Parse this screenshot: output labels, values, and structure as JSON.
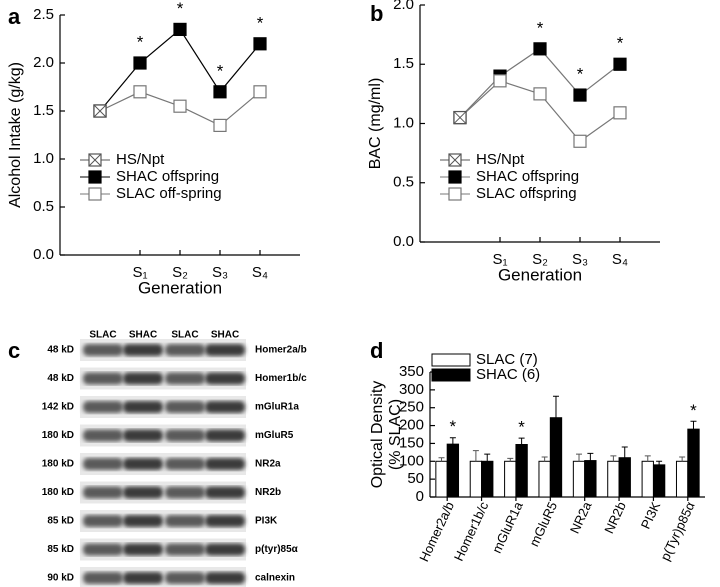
{
  "chart_data": [
    {
      "type": "line",
      "panel": "a",
      "ylabel": "Alcohol Intake (g/kg)",
      "xlabel": "Generation",
      "categories": [
        null,
        "S₁",
        "S₂",
        "S₃",
        "S₄"
      ],
      "ylim": [
        0,
        2.5
      ],
      "yticks": [
        {
          "value": 0,
          "label": "0.0"
        },
        {
          "value": 0.5,
          "label": "0.5"
        },
        {
          "value": 1,
          "label": "1.0"
        },
        {
          "value": 1.5,
          "label": "1.5"
        },
        {
          "value": 2,
          "label": "2.0"
        },
        {
          "value": 2.5,
          "label": "2.5"
        }
      ],
      "series": [
        {
          "name": "HS/Npt",
          "color": "#555555",
          "marker": "crossed-square",
          "values": [
            1.5,
            null,
            null,
            null,
            null
          ]
        },
        {
          "name": "SHAC offspring",
          "color": "#000000",
          "marker": "filled-square",
          "values": [
            1.5,
            2.0,
            2.35,
            1.7,
            2.2
          ]
        },
        {
          "name": "SLAC off-spring",
          "color": "#777777",
          "marker": "open-square",
          "values": [
            1.5,
            1.7,
            1.55,
            1.35,
            1.7
          ]
        }
      ],
      "annotations": [
        {
          "text": "*",
          "category": "S₁"
        },
        {
          "text": "*",
          "category": "S₂"
        },
        {
          "text": "*",
          "category": "S₃"
        },
        {
          "text": "*",
          "category": "S₄"
        }
      ]
    },
    {
      "type": "line",
      "panel": "b",
      "ylabel": "BAC (mg/ml)",
      "xlabel": "Generation",
      "categories": [
        null,
        "S₁",
        "S₂",
        "S₃",
        "S₄"
      ],
      "ylim": [
        0,
        2.0
      ],
      "yticks": [
        {
          "value": 0,
          "label": "0.0"
        },
        {
          "value": 0.5,
          "label": "0.5"
        },
        {
          "value": 1,
          "label": "1.0"
        },
        {
          "value": 1.5,
          "label": "1.5"
        },
        {
          "value": 2,
          "label": "2.0"
        }
      ],
      "series": [
        {
          "name": "HS/Npt",
          "color": "#555555",
          "marker": "crossed-square",
          "values": [
            1.05,
            null,
            null,
            null,
            null
          ]
        },
        {
          "name": "SHAC offspring",
          "color": "#777777",
          "marker": "filled-square",
          "values": [
            1.05,
            1.4,
            1.63,
            1.24,
            1.5
          ]
        },
        {
          "name": "SLAC offspring",
          "color": "#777777",
          "marker": "open-square",
          "values": [
            1.05,
            1.36,
            1.25,
            0.85,
            1.09
          ]
        }
      ],
      "annotations": [
        {
          "text": "*",
          "category": "S₂"
        },
        {
          "text": "*",
          "category": "S₃"
        },
        {
          "text": "*",
          "category": "S₄"
        }
      ]
    },
    {
      "type": "bar",
      "panel": "d",
      "ylabel": [
        "Optical Density",
        "(% SLAC)"
      ],
      "categories": [
        "Homer2a/b",
        "Homer1b/c",
        "mGluR1a",
        "mGluR5",
        "NR2a",
        "NR2b",
        "PI3K",
        "p(Tyr)p85α"
      ],
      "ylim": [
        0,
        350
      ],
      "yticks": [
        0,
        50,
        100,
        150,
        200,
        250,
        300,
        350
      ],
      "series": [
        {
          "name": "SLAC (7)",
          "color": "#ffffff",
          "values": [
            100,
            100,
            100,
            100,
            100,
            100,
            100,
            100
          ],
          "errors": [
            10,
            30,
            8,
            12,
            20,
            15,
            15,
            12
          ]
        },
        {
          "name": "SHAC (6)",
          "color": "#000000",
          "values": [
            148,
            100,
            147,
            222,
            102,
            110,
            90,
            190
          ],
          "errors": [
            18,
            20,
            18,
            60,
            20,
            30,
            10,
            22
          ]
        }
      ],
      "annotations": [
        {
          "text": "*",
          "category": "Homer2a/b"
        },
        {
          "text": "*",
          "category": "mGluR1a"
        },
        {
          "text": "*",
          "category": "p(Tyr)p85α"
        }
      ]
    }
  ],
  "blot": {
    "panel": "c",
    "lanes": [
      "SLAC",
      "SHAC",
      "SLAC",
      "SHAC"
    ],
    "rows": [
      {
        "mw": "48 kD",
        "protein": "Homer2a/b"
      },
      {
        "mw": "48 kD",
        "protein": "Homer1b/c"
      },
      {
        "mw": "142 kD",
        "protein": "mGluR1a"
      },
      {
        "mw": "180 kD",
        "protein": "mGluR5"
      },
      {
        "mw": "180 kD",
        "protein": "NR2a"
      },
      {
        "mw": "180 kD",
        "protein": "NR2b"
      },
      {
        "mw": "85 kD",
        "protein": "PI3K"
      },
      {
        "mw": "85 kD",
        "protein": "p(tyr)85α"
      },
      {
        "mw": "90 kD",
        "protein": "calnexin"
      }
    ]
  }
}
